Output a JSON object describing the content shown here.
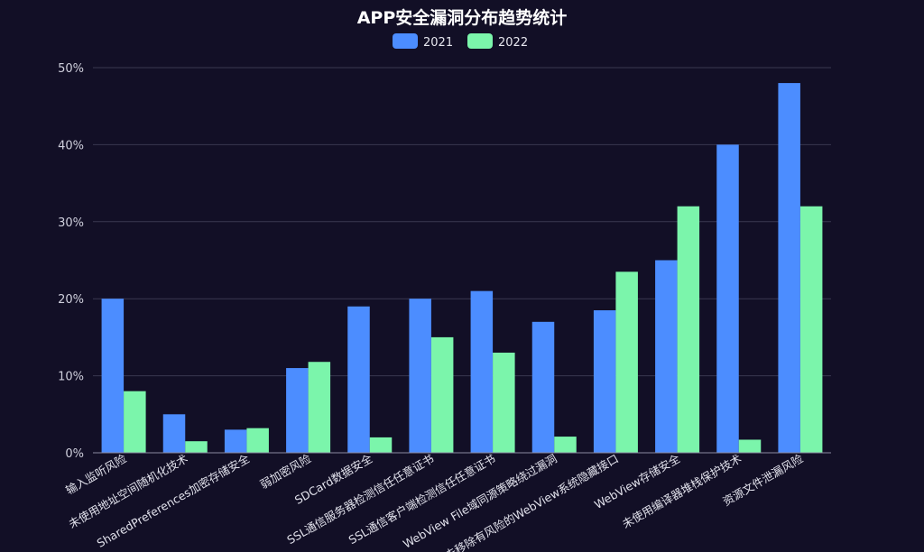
{
  "chart_data": {
    "type": "bar",
    "title": "APP安全漏洞分布趋势统计",
    "categories": [
      "输入监听风险",
      "未使用地址空间随机化技术",
      "SharedPreferences加密存储安全",
      "弱加密风险",
      "SDCard数据安全",
      "SSL通信服务器检测信任任意证书",
      "SSL通信客户端检测信任任意证书",
      "WebView File域同源策略绕过漏洞",
      "未移除有风险的WebView系统隐藏接口",
      "WebView存储安全",
      "未使用编译器堆栈保护技术",
      "资源文件泄漏风险"
    ],
    "series": [
      {
        "name": "2021",
        "color": "#4c8dff",
        "values": [
          20,
          5,
          3,
          11,
          19,
          20,
          21,
          17,
          18.5,
          25,
          40,
          48
        ]
      },
      {
        "name": "2022",
        "color": "#7bf5ab",
        "values": [
          8,
          1.5,
          3.2,
          11.8,
          2,
          15,
          13,
          2.1,
          23.5,
          32,
          1.7,
          32
        ]
      }
    ],
    "ylim": [
      0,
      50
    ],
    "yticks": [
      "0%",
      "10%",
      "20%",
      "30%",
      "40%",
      "50%"
    ],
    "xlabel": "",
    "ylabel": "",
    "grid": true,
    "legend": "top-center"
  },
  "colors": {
    "background": "#120f26",
    "grid": "#3a3850"
  }
}
